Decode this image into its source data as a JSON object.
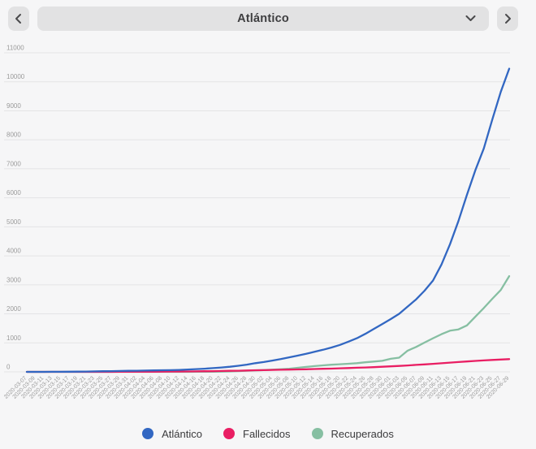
{
  "header": {
    "selector_value": "Atlántico",
    "prev_icon": "chevron-left",
    "next_icon": "chevron-right",
    "dropdown_icon": "chevron-down"
  },
  "axis_style": {
    "tick_color": "#9a9a9a",
    "grid_color": "#e4e4e6"
  },
  "chart_data": {
    "type": "line",
    "title": "",
    "xlabel": "",
    "ylabel": "",
    "ylim": [
      0,
      11000
    ],
    "ytick_step": 1000,
    "grid": "horizontal-only",
    "legend_position": "bottom",
    "x": [
      "2020-03-07",
      "2020-03-09",
      "2020-03-11",
      "2020-03-13",
      "2020-03-15",
      "2020-03-17",
      "2020-03-19",
      "2020-03-21",
      "2020-03-23",
      "2020-03-25",
      "2020-03-27",
      "2020-03-29",
      "2020-03-31",
      "2020-04-02",
      "2020-04-04",
      "2020-04-06",
      "2020-04-08",
      "2020-04-10",
      "2020-04-12",
      "2020-04-14",
      "2020-04-16",
      "2020-04-18",
      "2020-04-20",
      "2020-04-22",
      "2020-04-24",
      "2020-04-26",
      "2020-04-28",
      "2020-04-30",
      "2020-05-02",
      "2020-05-04",
      "2020-05-06",
      "2020-05-08",
      "2020-05-10",
      "2020-05-12",
      "2020-05-14",
      "2020-05-16",
      "2020-05-18",
      "2020-05-20",
      "2020-05-22",
      "2020-05-24",
      "2020-05-26",
      "2020-05-28",
      "2020-05-30",
      "2020-06-01",
      "2020-06-03",
      "2020-06-05",
      "2020-06-07",
      "2020-06-09",
      "2020-06-11",
      "2020-06-13",
      "2020-06-15",
      "2020-06-17",
      "2020-06-19",
      "2020-06-21",
      "2020-06-23",
      "2020-06-25",
      "2020-06-27",
      "2020-06-29"
    ],
    "series": [
      {
        "name": "Atlántico",
        "color": "#3267c2",
        "values": [
          0,
          1,
          1,
          2,
          3,
          5,
          8,
          12,
          16,
          21,
          26,
          30,
          35,
          40,
          45,
          50,
          55,
          60,
          68,
          80,
          95,
          110,
          130,
          150,
          175,
          210,
          250,
          300,
          340,
          390,
          440,
          500,
          560,
          620,
          690,
          760,
          840,
          930,
          1040,
          1160,
          1310,
          1480,
          1650,
          1820,
          2000,
          2250,
          2500,
          2800,
          3150,
          3700,
          4400,
          5200,
          6100,
          6950,
          7700,
          8700,
          9650,
          10450
        ]
      },
      {
        "name": "Fallecidos",
        "color": "#e91e63",
        "values": [
          0,
          0,
          0,
          0,
          0,
          0,
          0,
          0,
          0,
          1,
          1,
          2,
          3,
          4,
          5,
          6,
          8,
          10,
          12,
          15,
          18,
          22,
          26,
          30,
          35,
          40,
          48,
          55,
          60,
          66,
          72,
          78,
          84,
          90,
          97,
          105,
          113,
          122,
          132,
          142,
          152,
          163,
          175,
          190,
          205,
          222,
          240,
          258,
          278,
          298,
          318,
          338,
          358,
          378,
          395,
          412,
          425,
          440
        ]
      },
      {
        "name": "Recuperados",
        "color": "#86bfa2",
        "values": [
          0,
          0,
          0,
          0,
          0,
          0,
          0,
          0,
          0,
          0,
          0,
          0,
          0,
          0,
          0,
          0,
          0,
          0,
          0,
          1,
          2,
          3,
          5,
          8,
          15,
          25,
          38,
          50,
          62,
          75,
          90,
          110,
          140,
          170,
          200,
          225,
          245,
          262,
          280,
          300,
          330,
          355,
          380,
          450,
          490,
          730,
          860,
          1010,
          1160,
          1300,
          1420,
          1465,
          1600,
          1900,
          2200,
          2520,
          2820,
          3300
        ]
      }
    ]
  }
}
